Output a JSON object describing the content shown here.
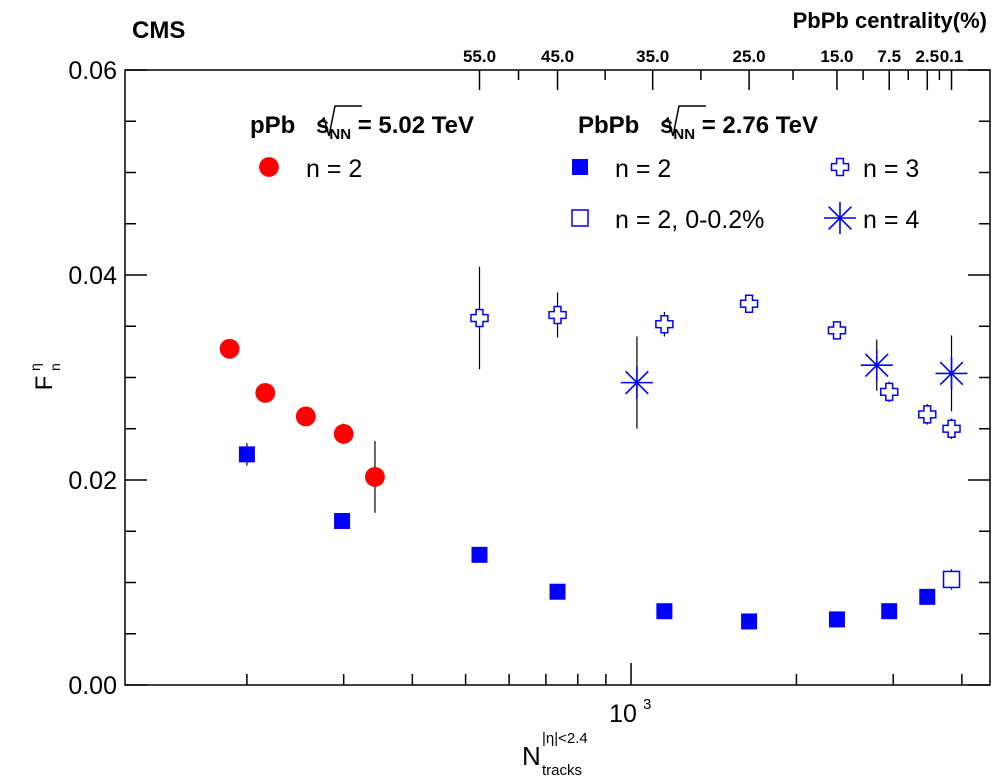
{
  "chart_data": {
    "type": "scatter",
    "experiment_label": "CMS",
    "top_axis_title": "PbPb centrality(%)",
    "top_axis_ticks": [
      {
        "label": "55.0",
        "x": 530
      },
      {
        "label": "45.0",
        "x": 735
      },
      {
        "label": "35.0",
        "x": 1095
      },
      {
        "label": "25.0",
        "x": 1640
      },
      {
        "label": "15.0",
        "x": 2370
      },
      {
        "label": "7.5",
        "x": 2950
      },
      {
        "label": "2.5",
        "x": 3460
      },
      {
        "label": "0.1",
        "x": 3830
      }
    ],
    "ylabel": {
      "main": "F",
      "sup": "η",
      "sub": "n"
    },
    "xlabel": {
      "main": "N",
      "sup": "|η|<2.4",
      "sub": "tracks"
    },
    "xscale": "log",
    "xlim": [
      120,
      4500
    ],
    "ylim": [
      0,
      0.06
    ],
    "y_tick_labels": [
      "0.00",
      "0.02",
      "0.04",
      "0.06"
    ],
    "x_tick_label": {
      "base": "10",
      "exp": "3"
    },
    "legend": {
      "ppb_header": {
        "pre": "pPb  ",
        "sqrt_s": "s",
        "sqrt_sub": "NN",
        "post": " = 5.02 TeV"
      },
      "pbpb_header": {
        "pre": "PbPb  ",
        "sqrt_s": "s",
        "sqrt_sub": "NN",
        "post": " = 2.76 TeV"
      },
      "entries": {
        "ppb_n2": "n = 2",
        "pbpb_n2": "n = 2",
        "pbpb_n2_ucc": "n = 2, 0-0.2%",
        "pbpb_n3": "n = 3",
        "pbpb_n4": "n = 4"
      }
    },
    "colors": {
      "ppb": "#ff0000",
      "pbpb": "#0000ff",
      "axis": "#000000"
    },
    "series": [
      {
        "key": "ppb_n2",
        "marker": "circle",
        "color": "#ff0000",
        "points": [
          {
            "x": 186,
            "y": 0.0328,
            "err": 0.0008
          },
          {
            "x": 216,
            "y": 0.0285,
            "err": 0.0008
          },
          {
            "x": 256,
            "y": 0.0262,
            "err": 0.0008
          },
          {
            "x": 300,
            "y": 0.0245,
            "err": 0.001
          },
          {
            "x": 342,
            "y": 0.0203,
            "err": 0.0035
          }
        ]
      },
      {
        "key": "pbpb_n2",
        "marker": "square",
        "color": "#0000ff",
        "points": [
          {
            "x": 200,
            "y": 0.0225,
            "err": 0.0011
          },
          {
            "x": 298,
            "y": 0.016,
            "err": 0.0004
          },
          {
            "x": 530,
            "y": 0.0127,
            "err": 0.0004
          },
          {
            "x": 735,
            "y": 0.0091,
            "err": 0.0004
          },
          {
            "x": 1150,
            "y": 0.0072,
            "err": 0.0004
          },
          {
            "x": 1640,
            "y": 0.0062,
            "err": 0.0004
          },
          {
            "x": 2370,
            "y": 0.0064,
            "err": 0.0004
          },
          {
            "x": 2950,
            "y": 0.0072,
            "err": 0.0004
          },
          {
            "x": 3460,
            "y": 0.0086,
            "err": 0.0004
          }
        ]
      },
      {
        "key": "pbpb_n2_ucc",
        "marker": "open-square",
        "color": "#0000ff",
        "points": [
          {
            "x": 3830,
            "y": 0.0103,
            "err": 0.001
          }
        ]
      },
      {
        "key": "pbpb_n3",
        "marker": "open-cross",
        "color": "#0000ff",
        "points": [
          {
            "x": 530,
            "y": 0.0358,
            "err": 0.005
          },
          {
            "x": 735,
            "y": 0.0361,
            "err": 0.0022
          },
          {
            "x": 1150,
            "y": 0.0352,
            "err": 0.0012
          },
          {
            "x": 1640,
            "y": 0.0372,
            "err": 0.0008
          },
          {
            "x": 2370,
            "y": 0.0346,
            "err": 0.0006
          },
          {
            "x": 2950,
            "y": 0.0286,
            "err": 0.001
          },
          {
            "x": 3460,
            "y": 0.0264,
            "err": 0.001
          },
          {
            "x": 3830,
            "y": 0.025,
            "err": 0.001
          }
        ]
      },
      {
        "key": "pbpb_n4",
        "marker": "star",
        "color": "#0000ff",
        "points": [
          {
            "x": 1025,
            "y": 0.0295,
            "err": 0.0045
          },
          {
            "x": 2800,
            "y": 0.0312,
            "err": 0.0025
          },
          {
            "x": 3830,
            "y": 0.0304,
            "err": 0.0037
          }
        ]
      }
    ]
  }
}
